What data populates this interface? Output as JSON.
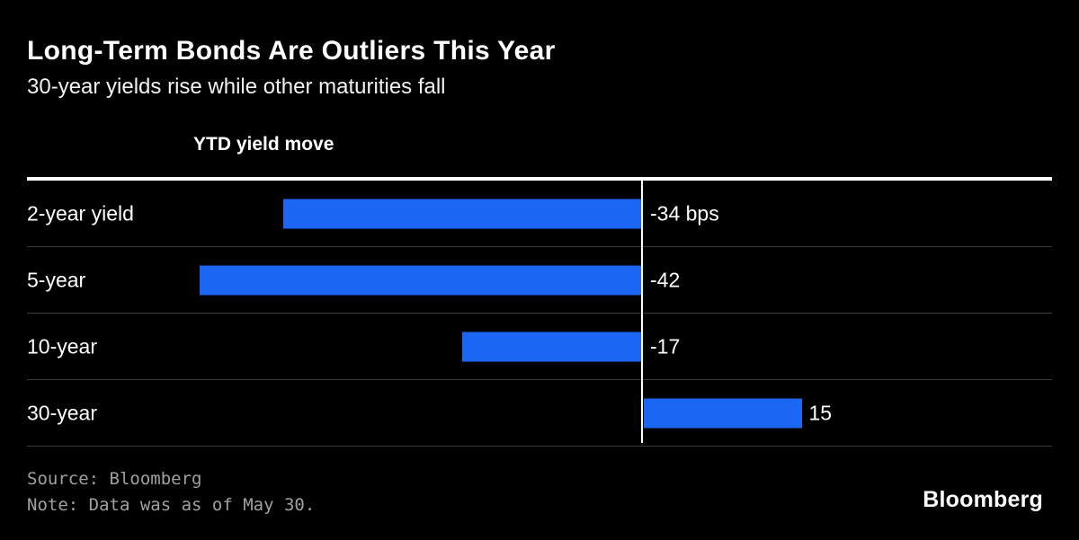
{
  "header": {
    "title": "Long-Term Bonds Are Outliers This Year",
    "subtitle": "30-year yields rise while other maturities fall"
  },
  "chart_data": {
    "type": "bar",
    "orientation": "horizontal",
    "column_header": "YTD yield move",
    "categories": [
      "2-year yield",
      "5-year",
      "10-year",
      "30-year"
    ],
    "values": [
      -34,
      -42,
      -17,
      15
    ],
    "value_labels": [
      "-34 bps",
      "-42",
      "-17",
      "15"
    ],
    "unit": "bps",
    "bar_color": "#1B66F2",
    "baseline_value": 0,
    "xlim": [
      -58,
      39
    ],
    "grid": false,
    "legend": "none"
  },
  "footer": {
    "source": "Source: Bloomberg",
    "note": "Note: Data was as of May 30.",
    "brand": "Bloomberg"
  }
}
